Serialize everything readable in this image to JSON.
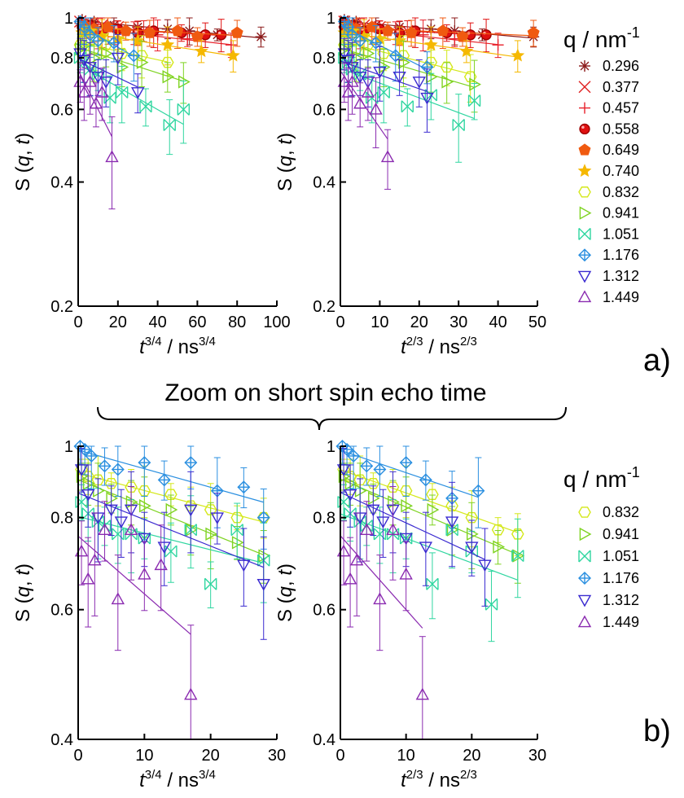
{
  "chart_data": [
    {
      "type": "scatter",
      "panel": "a)",
      "xlabel": {
        "base": "t",
        "base_exp": "3/4",
        "unit": " / ns",
        "unit_exp": "3/4"
      },
      "ylabel": "S (q, t)",
      "xlim": [
        0,
        100
      ],
      "ylim": [
        0.2,
        1
      ],
      "yscale": "log",
      "xticks": [
        0,
        20,
        40,
        60,
        80,
        100
      ],
      "yticks": [
        0.2,
        0.4,
        0.6,
        0.8,
        1
      ],
      "yticklabels": [
        "0.2",
        "0.4",
        "0.6",
        "0.8",
        "1"
      ],
      "legend": {
        "title": "q / nm",
        "title_exp": "-1",
        "entries": [
          "0.296",
          "0.377",
          "0.457",
          "0.558",
          "0.649",
          "0.740",
          "0.832",
          "0.941",
          "1.051",
          "1.176",
          "1.312",
          "1.449"
        ]
      },
      "series": [
        {
          "name": "0.296",
          "x": [
            2,
            8,
            18,
            30,
            45,
            56,
            70,
            92
          ],
          "y": [
            0.99,
            0.98,
            0.96,
            0.95,
            0.94,
            0.93,
            0.91,
            0.9
          ]
        },
        {
          "name": "0.377",
          "x": [
            1,
            5,
            12,
            20,
            33
          ],
          "y": [
            0.98,
            0.97,
            0.96,
            0.95,
            0.93
          ]
        },
        {
          "name": "0.457",
          "x": [
            1,
            4,
            10,
            18,
            28,
            40,
            55,
            77
          ],
          "y": [
            0.97,
            0.95,
            0.92,
            0.9,
            0.92,
            0.91,
            0.89,
            0.86
          ]
        },
        {
          "name": "0.558",
          "x": [
            2,
            6,
            12,
            20,
            30,
            38,
            52,
            64,
            72
          ],
          "y": [
            0.95,
            0.96,
            0.93,
            0.94,
            0.92,
            0.93,
            0.92,
            0.91,
            0.91
          ]
        },
        {
          "name": "0.649",
          "x": [
            3,
            8,
            15,
            24,
            36,
            50,
            60,
            80
          ],
          "y": [
            0.96,
            0.94,
            0.95,
            0.93,
            0.92,
            0.93,
            0.9,
            0.92
          ]
        },
        {
          "name": "0.740",
          "x": [
            2,
            6,
            12,
            20,
            30,
            45,
            62,
            78
          ],
          "y": [
            0.92,
            0.93,
            0.9,
            0.89,
            0.88,
            0.86,
            0.83,
            0.81
          ]
        },
        {
          "name": "0.832",
          "x": [
            1,
            4,
            8,
            14,
            22,
            32,
            45
          ],
          "y": [
            0.86,
            0.88,
            0.84,
            0.86,
            0.82,
            0.81,
            0.78
          ]
        },
        {
          "name": "0.941",
          "x": [
            1,
            4,
            8,
            14,
            22,
            32,
            45,
            53
          ],
          "y": [
            0.84,
            0.86,
            0.8,
            0.82,
            0.76,
            0.78,
            0.72,
            0.7
          ]
        },
        {
          "name": "1.051",
          "x": [
            1,
            3,
            6,
            10,
            16,
            22,
            34,
            46,
            53
          ],
          "y": [
            0.8,
            0.78,
            0.75,
            0.73,
            0.64,
            0.66,
            0.61,
            0.55,
            0.6
          ]
        },
        {
          "name": "1.176",
          "x": [
            1,
            3,
            6,
            10,
            18,
            28
          ],
          "y": [
            0.98,
            0.95,
            0.91,
            0.88,
            0.87,
            0.81
          ]
        },
        {
          "name": "1.312",
          "x": [
            1,
            3,
            6,
            10,
            14,
            20,
            30
          ],
          "y": [
            0.82,
            0.79,
            0.76,
            0.72,
            0.7,
            0.8,
            0.66
          ]
        },
        {
          "name": "1.449",
          "x": [
            1,
            3,
            6,
            9,
            12,
            17
          ],
          "y": [
            0.7,
            0.66,
            0.7,
            0.62,
            0.66,
            0.46
          ]
        }
      ]
    },
    {
      "type": "scatter",
      "xlabel": {
        "base": "t",
        "base_exp": "2/3",
        "unit": " / ns",
        "unit_exp": "2/3"
      },
      "ylabel": "S (q, t)",
      "xlim": [
        0,
        50
      ],
      "ylim": [
        0.2,
        1
      ],
      "yscale": "log",
      "xticks": [
        0,
        10,
        20,
        30,
        40,
        50
      ],
      "yticks": [
        0.2,
        0.4,
        0.6,
        0.8,
        1
      ],
      "yticklabels": [
        "0.2",
        "0.4",
        "0.6",
        "0.8",
        "1"
      ],
      "series": [
        {
          "name": "0.296",
          "x": [
            1,
            4,
            9,
            15,
            23,
            29,
            36,
            49
          ],
          "y": [
            0.99,
            0.98,
            0.96,
            0.95,
            0.94,
            0.93,
            0.91,
            0.9
          ]
        },
        {
          "name": "0.377",
          "x": [
            1,
            3,
            6,
            10,
            17
          ],
          "y": [
            0.98,
            0.97,
            0.96,
            0.95,
            0.93
          ]
        },
        {
          "name": "0.457",
          "x": [
            1,
            2,
            5,
            9,
            14,
            21,
            29,
            40
          ],
          "y": [
            0.97,
            0.95,
            0.92,
            0.9,
            0.92,
            0.91,
            0.89,
            0.86
          ]
        },
        {
          "name": "0.558",
          "x": [
            1,
            3,
            6,
            10,
            15,
            19,
            27,
            33,
            37
          ],
          "y": [
            0.95,
            0.96,
            0.93,
            0.94,
            0.92,
            0.93,
            0.92,
            0.91,
            0.91
          ]
        },
        {
          "name": "0.649",
          "x": [
            2,
            4,
            8,
            12,
            18,
            26,
            31,
            49
          ],
          "y": [
            0.96,
            0.94,
            0.95,
            0.93,
            0.92,
            0.93,
            0.9,
            0.92
          ]
        },
        {
          "name": "0.740",
          "x": [
            1,
            3,
            6,
            10,
            15,
            23,
            32,
            45
          ],
          "y": [
            0.92,
            0.93,
            0.9,
            0.89,
            0.88,
            0.86,
            0.83,
            0.81
          ]
        },
        {
          "name": "0.832",
          "x": [
            1,
            2,
            4,
            7,
            11,
            16,
            23,
            27,
            33
          ],
          "y": [
            0.86,
            0.88,
            0.84,
            0.86,
            0.82,
            0.81,
            0.78,
            0.76,
            0.72
          ]
        },
        {
          "name": "0.941",
          "x": [
            1,
            2,
            4,
            7,
            11,
            16,
            23,
            27,
            34
          ],
          "y": [
            0.84,
            0.86,
            0.8,
            0.82,
            0.76,
            0.78,
            0.72,
            0.7,
            0.69
          ]
        },
        {
          "name": "1.051",
          "x": [
            1,
            2,
            3,
            5,
            8,
            11,
            17,
            23,
            30,
            34
          ],
          "y": [
            0.8,
            0.78,
            0.75,
            0.73,
            0.64,
            0.66,
            0.61,
            0.65,
            0.55,
            0.63
          ]
        },
        {
          "name": "1.176",
          "x": [
            1,
            2,
            3,
            5,
            9,
            14,
            22
          ],
          "y": [
            0.98,
            0.95,
            0.91,
            0.88,
            0.87,
            0.81,
            0.76
          ]
        },
        {
          "name": "1.312",
          "x": [
            1,
            2,
            3,
            5,
            7,
            10,
            15,
            20,
            22
          ],
          "y": [
            0.82,
            0.79,
            0.76,
            0.72,
            0.7,
            0.74,
            0.72,
            0.7,
            0.64
          ]
        },
        {
          "name": "1.449",
          "x": [
            1,
            2,
            3,
            5,
            7,
            9,
            12
          ],
          "y": [
            0.7,
            0.66,
            0.7,
            0.62,
            0.66,
            0.6,
            0.46
          ]
        }
      ]
    },
    {
      "type": "scatter",
      "panel": "b)",
      "xlabel": {
        "base": "t",
        "base_exp": "3/4",
        "unit": " / ns",
        "unit_exp": "3/4"
      },
      "ylabel": "S (q, t)",
      "xlim": [
        0,
        30
      ],
      "ylim": [
        0.4,
        1
      ],
      "yscale": "log",
      "xticks": [
        0,
        10,
        20,
        30
      ],
      "yticks": [
        0.4,
        0.6,
        0.8,
        1
      ],
      "yticklabels": [
        "0.4",
        "0.6",
        "0.8",
        "1"
      ],
      "legend": {
        "title": "q / nm",
        "title_exp": "-1",
        "entries": [
          "0.832",
          "0.941",
          "1.051",
          "1.176",
          "1.312",
          "1.449"
        ]
      },
      "series": [
        {
          "name": "0.832",
          "x": [
            0.5,
            1.5,
            3,
            5,
            8,
            10,
            14,
            17,
            20,
            24,
            28
          ],
          "y": [
            0.93,
            0.91,
            0.9,
            0.89,
            0.88,
            0.87,
            0.86,
            0.83,
            0.82,
            0.8,
            0.8
          ]
        },
        {
          "name": "0.941",
          "x": [
            0.5,
            1.5,
            3,
            5,
            8,
            10,
            14,
            17,
            20,
            24,
            28
          ],
          "y": [
            0.91,
            0.89,
            0.87,
            0.85,
            0.84,
            0.83,
            0.82,
            0.77,
            0.76,
            0.74,
            0.71
          ]
        },
        {
          "name": "1.051",
          "x": [
            0.5,
            1.5,
            3,
            4,
            6,
            8,
            10,
            14,
            17,
            20,
            24,
            28
          ],
          "y": [
            0.84,
            0.81,
            0.79,
            0.78,
            0.76,
            0.76,
            0.75,
            0.72,
            0.77,
            0.65,
            0.77,
            0.7
          ]
        },
        {
          "name": "1.176",
          "x": [
            0.3,
            1,
            2,
            4,
            6,
            10,
            13,
            17,
            21,
            25,
            28
          ],
          "y": [
            1.0,
            0.99,
            0.97,
            0.94,
            0.93,
            0.95,
            0.9,
            0.95,
            0.87,
            0.88,
            0.8
          ]
        },
        {
          "name": "1.312",
          "x": [
            0.5,
            1.5,
            3,
            5,
            6.5,
            8,
            10,
            13,
            17,
            21,
            25,
            28
          ],
          "y": [
            0.93,
            0.86,
            0.8,
            0.82,
            0.79,
            0.82,
            0.75,
            0.73,
            0.82,
            0.8,
            0.69,
            0.65
          ]
        },
        {
          "name": "1.449",
          "x": [
            0.5,
            1.5,
            2.5,
            4,
            6,
            8,
            10,
            12.5,
            17
          ],
          "y": [
            0.72,
            0.66,
            0.7,
            0.77,
            0.62,
            0.77,
            0.67,
            0.69,
            0.46
          ]
        }
      ]
    },
    {
      "type": "scatter",
      "xlabel": {
        "base": "t",
        "base_exp": "2/3",
        "unit": " / ns",
        "unit_exp": "2/3"
      },
      "ylabel": "S (q, t)",
      "xlim": [
        0,
        30
      ],
      "ylim": [
        0.4,
        1
      ],
      "yscale": "log",
      "xticks": [
        0,
        10,
        20,
        30
      ],
      "yticks": [
        0.4,
        0.6,
        0.8,
        1
      ],
      "yticklabels": [
        "0.4",
        "0.6",
        "0.8",
        "1"
      ],
      "series": [
        {
          "name": "0.832",
          "x": [
            0.5,
            1.5,
            3,
            5,
            8,
            10,
            14,
            17,
            20,
            24,
            27
          ],
          "y": [
            0.93,
            0.91,
            0.9,
            0.89,
            0.88,
            0.87,
            0.86,
            0.83,
            0.8,
            0.77,
            0.76
          ]
        },
        {
          "name": "0.941",
          "x": [
            0.5,
            1.5,
            3,
            5,
            8,
            10,
            14,
            17,
            20,
            24,
            27
          ],
          "y": [
            0.91,
            0.89,
            0.87,
            0.85,
            0.84,
            0.83,
            0.82,
            0.77,
            0.76,
            0.73,
            0.71
          ]
        },
        {
          "name": "1.051",
          "x": [
            0.5,
            1.5,
            3,
            4,
            6,
            8,
            10,
            14,
            17,
            20,
            23,
            27
          ],
          "y": [
            0.84,
            0.81,
            0.79,
            0.78,
            0.76,
            0.76,
            0.75,
            0.65,
            0.77,
            0.72,
            0.61,
            0.71
          ]
        },
        {
          "name": "1.176",
          "x": [
            0.3,
            1,
            2,
            4,
            6,
            10,
            13,
            17,
            21
          ],
          "y": [
            1.0,
            0.99,
            0.97,
            0.94,
            0.93,
            0.95,
            0.9,
            0.85,
            0.87
          ]
        },
        {
          "name": "1.312",
          "x": [
            0.5,
            1.5,
            3,
            5,
            6.5,
            8,
            10,
            13,
            17,
            20,
            22
          ],
          "y": [
            0.93,
            0.86,
            0.8,
            0.82,
            0.79,
            0.82,
            0.75,
            0.73,
            0.79,
            0.73,
            0.69
          ]
        },
        {
          "name": "1.449",
          "x": [
            0.5,
            1.5,
            2.5,
            4,
            6,
            8,
            10,
            12.5
          ],
          "y": [
            0.72,
            0.66,
            0.7,
            0.77,
            0.62,
            0.77,
            0.67,
            0.46
          ]
        }
      ]
    }
  ],
  "annotations": {
    "panel_a": "a)",
    "panel_b": "b)",
    "zoom_label": "Zoom on short spin echo time"
  },
  "colors": {
    "0.296": "#8b1a1a",
    "0.377": "#e02020",
    "0.457": "#e8202a",
    "0.558": "#e01010",
    "0.649": "#f05a10",
    "0.740": "#f5b800",
    "0.832": "#d4e81a",
    "0.941": "#7ed321",
    "1.051": "#2fd6a0",
    "1.176": "#2a8fe0",
    "1.312": "#3a2ad0",
    "1.449": "#8a2ab0"
  },
  "markers": {
    "0.296": "asterisk",
    "0.377": "cross",
    "0.457": "plus",
    "0.558": "circle",
    "0.649": "pentagon",
    "0.740": "star",
    "0.832": "hexagon",
    "0.941": "triangle-right",
    "1.051": "x-box",
    "1.176": "diamond-plus",
    "1.312": "triangle-down",
    "1.449": "triangle-up"
  }
}
